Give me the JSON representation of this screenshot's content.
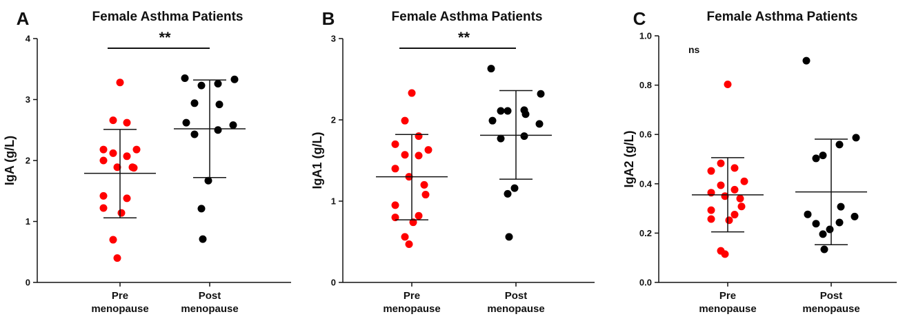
{
  "chart_data": [
    {
      "type": "scatter",
      "panel": "A",
      "title": "Female Asthma Patients",
      "ylabel": "IgA (g/L)",
      "ylim": [
        0,
        4
      ],
      "yticks": [
        "0",
        "1",
        "2",
        "3",
        "4"
      ],
      "categories": [
        [
          "Pre",
          "menopause"
        ],
        [
          "Post",
          "menopause"
        ]
      ],
      "series": [
        {
          "color": "#ff0000",
          "mean": 1.79,
          "sd_low": 1.06,
          "sd_high": 2.51,
          "points": [
            3.28,
            2.66,
            2.62,
            2.18,
            2.18,
            2.12,
            2.07,
            2.0,
            1.89,
            1.89,
            1.88,
            1.42,
            1.38,
            1.22,
            1.14,
            0.7,
            0.4
          ]
        },
        {
          "color": "#000000",
          "mean": 2.52,
          "sd_low": 1.72,
          "sd_high": 3.32,
          "points": [
            3.35,
            3.33,
            3.26,
            3.23,
            2.94,
            2.92,
            2.62,
            2.58,
            2.5,
            2.43,
            1.67,
            1.21,
            0.71
          ]
        }
      ],
      "significance": "**"
    },
    {
      "type": "scatter",
      "panel": "B",
      "title": "Female Asthma Patients",
      "ylabel": "IgA1 (g/L)",
      "ylim": [
        0,
        3
      ],
      "yticks": [
        "0",
        "1",
        "2",
        "3"
      ],
      "categories": [
        [
          "Pre",
          "menopause"
        ],
        [
          "Post",
          "menopause"
        ]
      ],
      "series": [
        {
          "color": "#ff0000",
          "mean": 1.3,
          "sd_low": 0.77,
          "sd_high": 1.82,
          "points": [
            2.33,
            1.99,
            1.8,
            1.7,
            1.63,
            1.57,
            1.56,
            1.4,
            1.3,
            1.2,
            1.08,
            0.95,
            0.82,
            0.8,
            0.74,
            0.56,
            0.47
          ]
        },
        {
          "color": "#000000",
          "mean": 1.81,
          "sd_low": 1.27,
          "sd_high": 2.36,
          "points": [
            2.63,
            2.32,
            2.12,
            2.11,
            2.11,
            2.07,
            1.99,
            1.95,
            1.8,
            1.77,
            1.16,
            1.09,
            0.56
          ]
        }
      ],
      "significance": "**"
    },
    {
      "type": "scatter",
      "panel": "C",
      "title": "Female Asthma Patients",
      "ylabel": "IgA2 (g/L)",
      "ylim": [
        0,
        1.0
      ],
      "yticks": [
        "0.0",
        "0.2",
        "0.4",
        "0.6",
        "0.8",
        "1.0"
      ],
      "categories": [
        [
          "Pre",
          "menopause"
        ],
        [
          "Post",
          "menopause"
        ]
      ],
      "series": [
        {
          "color": "#ff0000",
          "mean": 0.355,
          "sd_low": 0.205,
          "sd_high": 0.506,
          "points": [
            0.803,
            0.483,
            0.464,
            0.452,
            0.41,
            0.394,
            0.376,
            0.364,
            0.35,
            0.34,
            0.308,
            0.293,
            0.275,
            0.257,
            0.252,
            0.128,
            0.115
          ]
        },
        {
          "color": "#000000",
          "mean": 0.367,
          "sd_low": 0.153,
          "sd_high": 0.581,
          "points": [
            0.899,
            0.587,
            0.559,
            0.515,
            0.503,
            0.307,
            0.276,
            0.267,
            0.243,
            0.238,
            0.215,
            0.196,
            0.134
          ]
        }
      ],
      "significance": "ns"
    }
  ]
}
